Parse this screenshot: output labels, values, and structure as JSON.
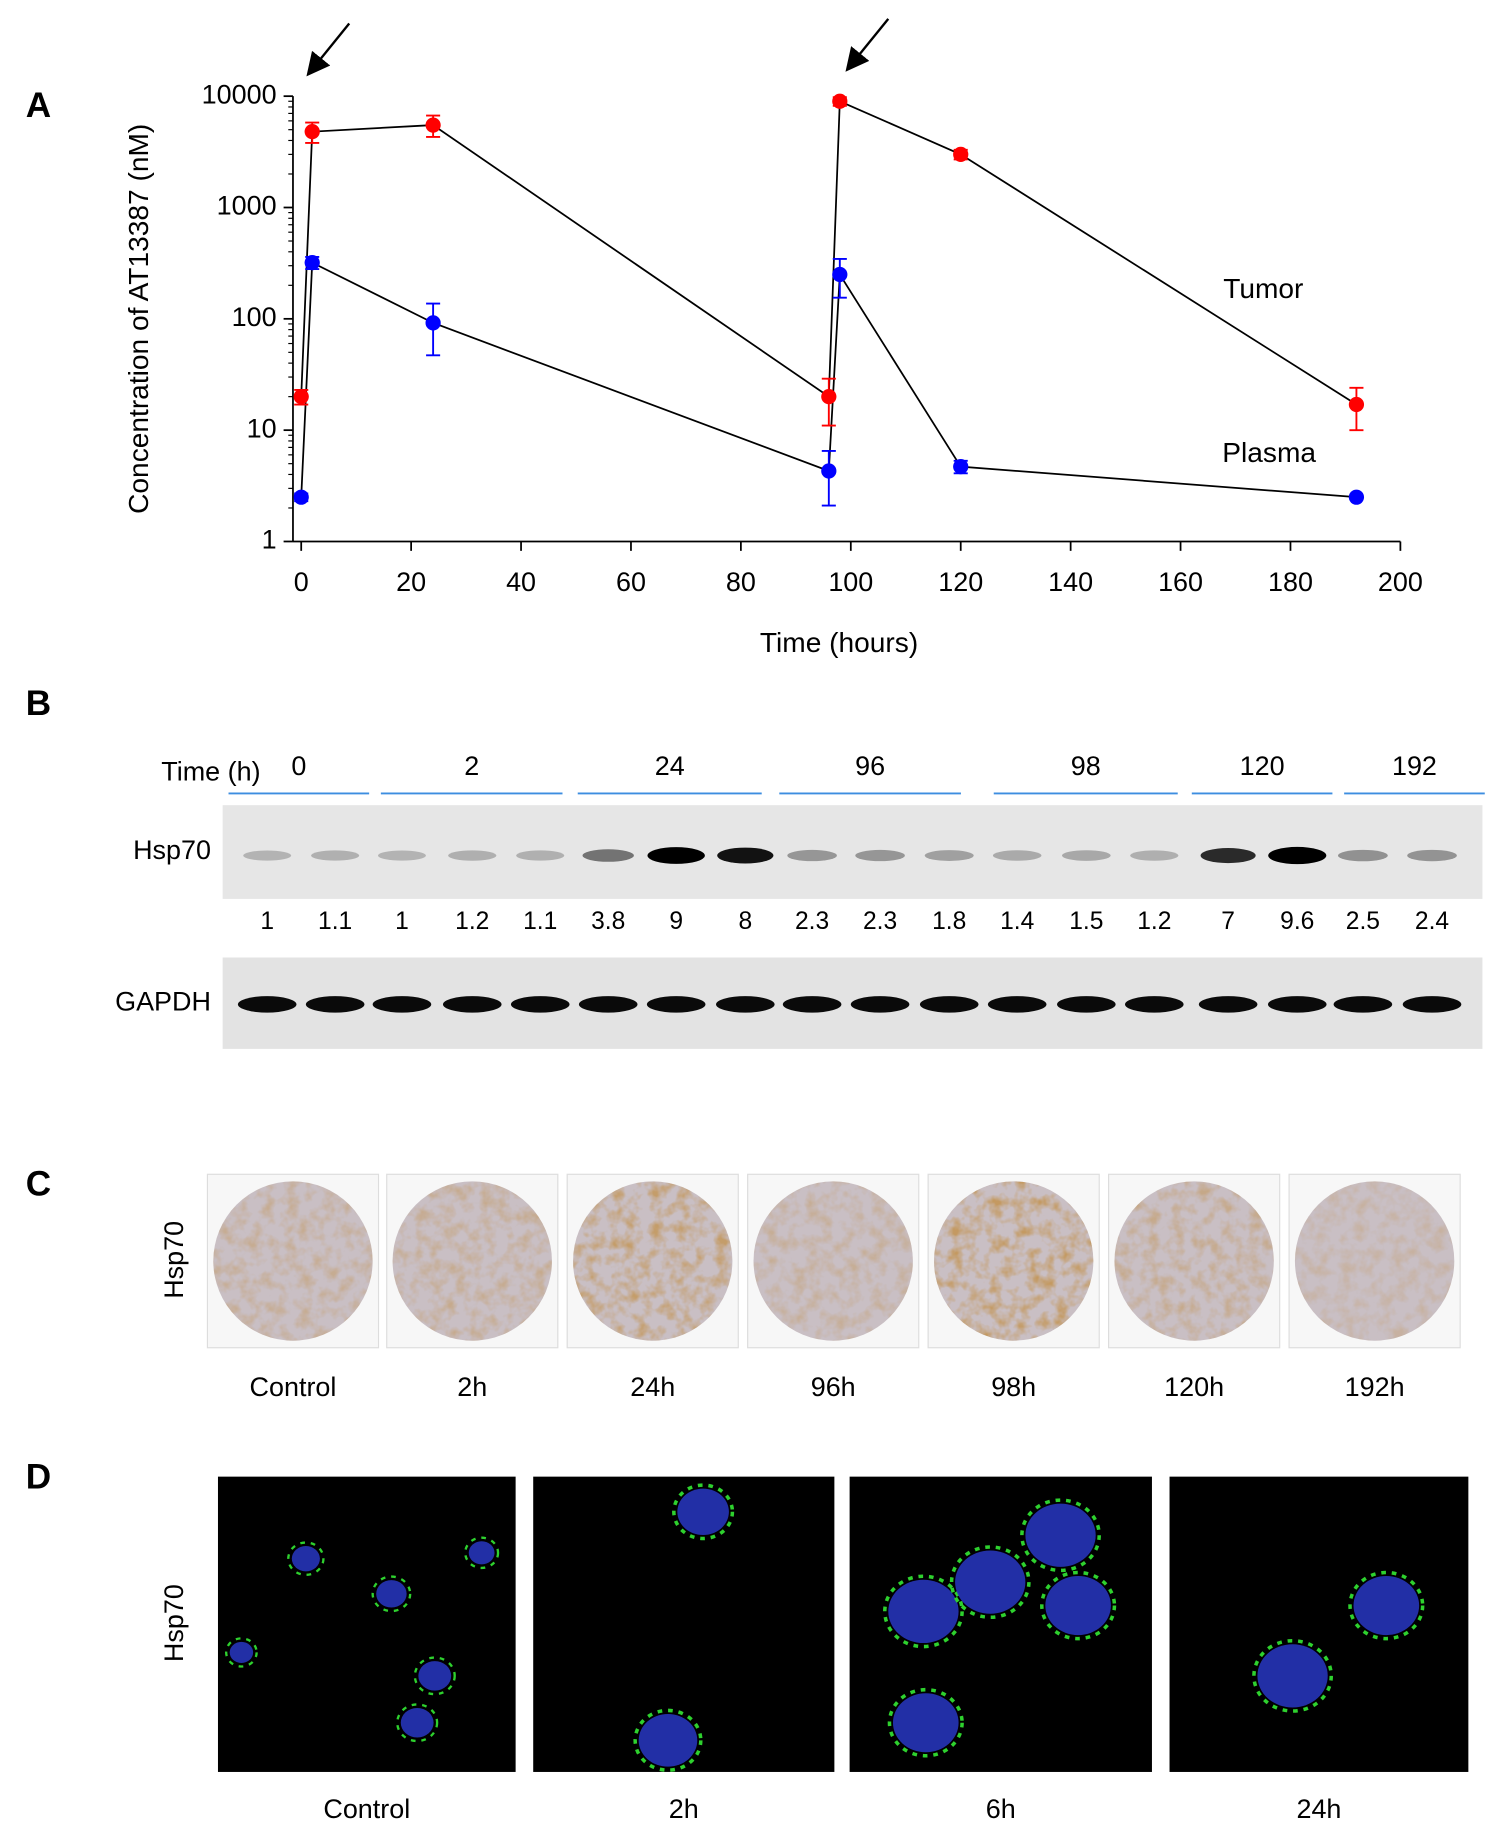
{
  "panel_labels": [
    "A",
    "B",
    "C",
    "D"
  ],
  "chart_data": {
    "type": "line",
    "y_label": "Concentration of AT13387 (nM)",
    "x_label": "Time (hours)",
    "x": [
      0,
      2,
      24,
      96,
      98,
      120,
      192
    ],
    "xlim": [
      -1.5,
      200
    ],
    "xticks": [
      0,
      20,
      40,
      60,
      80,
      100,
      120,
      140,
      160,
      180,
      200
    ],
    "ylim": [
      1,
      10000
    ],
    "yticks": [
      1,
      10,
      100,
      1000,
      10000
    ],
    "log_y": true,
    "line_color": "#000000",
    "series": [
      {
        "name": "Tumor",
        "color": "#ff0000",
        "values": [
          20,
          4800,
          5500,
          20,
          9000,
          3000,
          17
        ],
        "errors": [
          3,
          1000,
          1200,
          9,
          800,
          300,
          7
        ]
      },
      {
        "name": "Plasma",
        "color": "#0000ff",
        "values": [
          2.5,
          320,
          92,
          4.3,
          250,
          4.7,
          2.5
        ],
        "errors": [
          0.2,
          40,
          45,
          2.2,
          95,
          0.6,
          0.1
        ]
      }
    ]
  },
  "western_blot": {
    "time_label": "Time (h)",
    "groups": [
      "0",
      "2",
      "24",
      "96",
      "98",
      "120",
      "192"
    ],
    "hsp70_label": "Hsp70",
    "quantification": [
      1,
      1.1,
      1,
      1.2,
      1.1,
      3.8,
      9,
      8,
      2.3,
      2.3,
      1.8,
      1.4,
      1.5,
      1.2,
      7,
      9.6,
      2.5,
      2.4
    ],
    "gapdh_label": "GAPDH"
  },
  "ihc": {
    "row_label": "Hsp70",
    "columns": [
      "Control",
      "2h",
      "24h",
      "96h",
      "98h",
      "120h",
      "192h"
    ]
  },
  "immunofluorescence": {
    "row_label": "Hsp70",
    "columns": [
      "Control",
      "2h",
      "6h",
      "24h"
    ]
  }
}
